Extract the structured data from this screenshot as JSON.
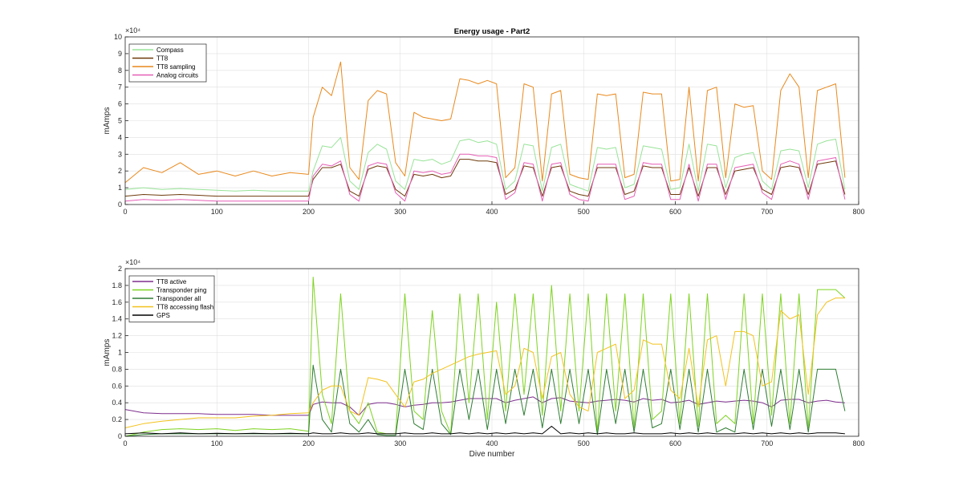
{
  "chart_data": [
    {
      "type": "line",
      "title": "Energy usage - Part2",
      "xlabel": "",
      "ylabel": "mAmps",
      "xlim": [
        0,
        800
      ],
      "ylim": [
        0,
        100000
      ],
      "exponent_label": "×10⁴",
      "x_tick_values": [
        0,
        100,
        200,
        300,
        400,
        500,
        600,
        700,
        800
      ],
      "x_tick_labels": [
        "0",
        "100",
        "200",
        "300",
        "400",
        "500",
        "600",
        "700",
        "800"
      ],
      "y_tick_values": [
        0,
        10000,
        20000,
        30000,
        40000,
        50000,
        60000,
        70000,
        80000,
        90000,
        100000
      ],
      "y_tick_labels": [
        "0",
        "1",
        "2",
        "3",
        "4",
        "5",
        "6",
        "7",
        "8",
        "9",
        "10"
      ],
      "grid": true,
      "legend_position": "top-left",
      "x": [
        0,
        20,
        40,
        60,
        80,
        100,
        120,
        140,
        160,
        180,
        200,
        205,
        215,
        225,
        235,
        245,
        255,
        265,
        275,
        285,
        295,
        305,
        315,
        325,
        335,
        345,
        355,
        365,
        375,
        385,
        395,
        405,
        415,
        425,
        435,
        445,
        455,
        465,
        475,
        485,
        495,
        505,
        515,
        525,
        535,
        545,
        555,
        565,
        575,
        585,
        595,
        605,
        615,
        625,
        635,
        645,
        655,
        665,
        675,
        685,
        695,
        705,
        715,
        725,
        735,
        745,
        755,
        765,
        775,
        785
      ],
      "series": [
        {
          "name": "Compass",
          "color": "#98e398",
          "values": [
            9000,
            10000,
            9000,
            9500,
            9000,
            8500,
            8000,
            8500,
            8000,
            8000,
            8000,
            20000,
            35000,
            34000,
            40000,
            14000,
            9000,
            31000,
            36000,
            33000,
            14000,
            9000,
            27000,
            26000,
            27000,
            24000,
            26000,
            38000,
            39000,
            37000,
            38000,
            36000,
            9000,
            14000,
            36000,
            35000,
            8000,
            34000,
            36000,
            12000,
            10000,
            8000,
            34000,
            33000,
            34000,
            10000,
            12000,
            35000,
            34000,
            33000,
            9000,
            10000,
            36000,
            8000,
            36000,
            35000,
            10000,
            28000,
            30000,
            31000,
            14000,
            9000,
            32000,
            33000,
            32000,
            10000,
            36000,
            38000,
            39000,
            9000
          ]
        },
        {
          "name": "TT8",
          "color": "#6e3a0c",
          "values": [
            5000,
            6000,
            5500,
            6000,
            5500,
            5000,
            5000,
            5000,
            5000,
            5000,
            5000,
            15000,
            22000,
            22000,
            24000,
            8000,
            5000,
            21000,
            23000,
            22000,
            9000,
            5000,
            18000,
            17000,
            18000,
            16000,
            17000,
            27000,
            27000,
            26000,
            26000,
            25000,
            6000,
            9000,
            23000,
            22000,
            5000,
            22000,
            23000,
            8000,
            6000,
            5000,
            22000,
            22000,
            22000,
            6000,
            8000,
            23000,
            22000,
            22000,
            6000,
            6000,
            22000,
            5000,
            22000,
            22000,
            6000,
            20000,
            21000,
            22000,
            9000,
            6000,
            22000,
            23000,
            22000,
            6000,
            24000,
            25000,
            26000,
            6000
          ]
        },
        {
          "name": "TT8 sampling",
          "color": "#e8891d",
          "values": [
            13000,
            22000,
            19000,
            25000,
            18000,
            20000,
            17000,
            20000,
            17000,
            19000,
            18000,
            52000,
            70000,
            65000,
            85000,
            22000,
            15000,
            62000,
            68000,
            66000,
            25000,
            17000,
            55000,
            52000,
            51000,
            50000,
            51000,
            75000,
            74000,
            72000,
            74000,
            72000,
            16000,
            22000,
            72000,
            70000,
            14000,
            66000,
            68000,
            18000,
            16000,
            15000,
            66000,
            65000,
            66000,
            16000,
            18000,
            67000,
            66000,
            66000,
            14000,
            15000,
            70000,
            14000,
            68000,
            70000,
            16000,
            60000,
            58000,
            59000,
            20000,
            15000,
            68000,
            78000,
            70000,
            16000,
            68000,
            70000,
            72000,
            16000
          ]
        },
        {
          "name": "Analog circuits",
          "color": "#e55fb6",
          "values": [
            2000,
            3000,
            2500,
            3000,
            2500,
            2000,
            2000,
            2000,
            2000,
            2000,
            2000,
            17000,
            24000,
            23000,
            26000,
            6000,
            2000,
            23000,
            25000,
            24000,
            7000,
            2000,
            20000,
            19000,
            20000,
            18000,
            19000,
            30000,
            30000,
            29000,
            29000,
            28000,
            3000,
            7000,
            25000,
            24000,
            2000,
            24000,
            25000,
            6000,
            3000,
            2000,
            24000,
            24000,
            24000,
            3000,
            5000,
            25000,
            24000,
            24000,
            3000,
            3000,
            24000,
            2000,
            24000,
            24000,
            3000,
            22000,
            23000,
            24000,
            7000,
            3000,
            24000,
            26000,
            24000,
            3000,
            26000,
            27000,
            28000,
            3000
          ]
        }
      ]
    },
    {
      "type": "line",
      "title": "",
      "xlabel": "Dive number",
      "ylabel": "mAmps",
      "xlim": [
        0,
        800
      ],
      "ylim": [
        0,
        20000
      ],
      "exponent_label": "×10⁴",
      "x_tick_values": [
        0,
        100,
        200,
        300,
        400,
        500,
        600,
        700,
        800
      ],
      "x_tick_labels": [
        "0",
        "100",
        "200",
        "300",
        "400",
        "500",
        "600",
        "700",
        "800"
      ],
      "y_tick_values": [
        0,
        2000,
        4000,
        6000,
        8000,
        10000,
        12000,
        14000,
        16000,
        18000,
        20000
      ],
      "y_tick_labels": [
        "0",
        "0.2",
        "0.4",
        "0.6",
        "0.8",
        "1",
        "1.2",
        "1.4",
        "1.6",
        "1.8",
        "2"
      ],
      "grid": true,
      "legend_position": "top-left",
      "x": [
        0,
        20,
        40,
        60,
        80,
        100,
        120,
        140,
        160,
        180,
        200,
        205,
        215,
        225,
        235,
        245,
        255,
        265,
        275,
        285,
        295,
        305,
        315,
        325,
        335,
        345,
        355,
        365,
        375,
        385,
        395,
        405,
        415,
        425,
        435,
        445,
        455,
        465,
        475,
        485,
        495,
        505,
        515,
        525,
        535,
        545,
        555,
        565,
        575,
        585,
        595,
        605,
        615,
        625,
        635,
        645,
        655,
        665,
        675,
        685,
        695,
        705,
        715,
        725,
        735,
        745,
        755,
        765,
        775,
        785
      ],
      "series": [
        {
          "name": "TT8 active",
          "color": "#7e2f8e",
          "values": [
            3200,
            2800,
            2700,
            2700,
            2700,
            2600,
            2600,
            2600,
            2500,
            2500,
            2500,
            3800,
            4100,
            4000,
            4000,
            3500,
            2500,
            3800,
            4000,
            4000,
            3800,
            3500,
            3700,
            3800,
            4000,
            4000,
            4100,
            4300,
            4500,
            4500,
            4500,
            4500,
            4000,
            4300,
            4500,
            4700,
            4000,
            4500,
            4600,
            4200,
            4100,
            4000,
            4200,
            4300,
            4400,
            4300,
            4100,
            4500,
            4300,
            4400,
            4000,
            4100,
            4300,
            3800,
            4000,
            4200,
            4100,
            4200,
            4300,
            4200,
            4000,
            3500,
            4300,
            4400,
            4400,
            4000,
            4200,
            4300,
            4100,
            4000
          ]
        },
        {
          "name": "Transponder ping",
          "color": "#7ed321",
          "values": [
            0,
            500,
            800,
            900,
            800,
            900,
            700,
            900,
            800,
            900,
            600,
            19000,
            5000,
            1500,
            17000,
            3000,
            1500,
            4000,
            500,
            300,
            300,
            17000,
            3000,
            2000,
            15000,
            3000,
            300,
            17000,
            4000,
            17000,
            2000,
            16000,
            3000,
            17000,
            5000,
            17000,
            2500,
            18000,
            3000,
            17000,
            3000,
            17000,
            500,
            17000,
            3000,
            17000,
            1000,
            17000,
            2000,
            3000,
            17000,
            1500,
            17000,
            1200,
            17000,
            1500,
            2500,
            1500,
            17000,
            1500,
            17000,
            2500,
            17000,
            1500,
            17000,
            1000,
            17500,
            17500,
            17500,
            16500
          ]
        },
        {
          "name": "Transponder all",
          "color": "#2e7d32",
          "values": [
            0,
            200,
            300,
            300,
            300,
            300,
            300,
            300,
            300,
            300,
            300,
            8500,
            2000,
            500,
            8000,
            1500,
            500,
            2000,
            200,
            100,
            100,
            8000,
            1500,
            800,
            8000,
            1500,
            200,
            8000,
            2000,
            8000,
            800,
            8000,
            1500,
            8000,
            2500,
            8000,
            1000,
            8000,
            1500,
            8000,
            1500,
            8000,
            200,
            8000,
            1500,
            8000,
            500,
            8000,
            1000,
            1500,
            8000,
            800,
            8000,
            500,
            8000,
            500,
            1000,
            500,
            8000,
            800,
            8000,
            1200,
            8000,
            800,
            8000,
            500,
            8000,
            8000,
            8000,
            3000
          ]
        },
        {
          "name": "TT8 accessing flash",
          "color": "#f2c21b",
          "values": [
            1000,
            1500,
            1800,
            2000,
            2200,
            2200,
            2200,
            2400,
            2500,
            2700,
            2800,
            4000,
            5500,
            6000,
            6000,
            3000,
            2500,
            7000,
            6800,
            6500,
            5000,
            3500,
            6500,
            6800,
            7500,
            8000,
            8500,
            9000,
            9500,
            9800,
            10000,
            10200,
            5000,
            6000,
            10500,
            10000,
            4500,
            9500,
            10000,
            5000,
            3500,
            3000,
            10000,
            10500,
            11000,
            4500,
            5500,
            11500,
            11000,
            11000,
            5500,
            4500,
            10500,
            3500,
            11500,
            12000,
            6000,
            12500,
            12500,
            12000,
            6000,
            6500,
            15000,
            14000,
            14500,
            5000,
            14500,
            16000,
            16500,
            16500
          ]
        },
        {
          "name": "GPS",
          "color": "#000000",
          "values": [
            300,
            400,
            300,
            400,
            300,
            350,
            300,
            350,
            300,
            350,
            300,
            400,
            300,
            300,
            400,
            300,
            300,
            400,
            300,
            300,
            300,
            400,
            300,
            300,
            400,
            300,
            300,
            400,
            300,
            400,
            300,
            400,
            300,
            400,
            300,
            400,
            300,
            1200,
            300,
            400,
            300,
            400,
            300,
            400,
            300,
            300,
            400,
            300,
            300,
            300,
            400,
            300,
            400,
            300,
            400,
            300,
            300,
            300,
            400,
            300,
            400,
            300,
            400,
            300,
            400,
            300,
            400,
            400,
            400,
            300
          ]
        }
      ]
    }
  ]
}
